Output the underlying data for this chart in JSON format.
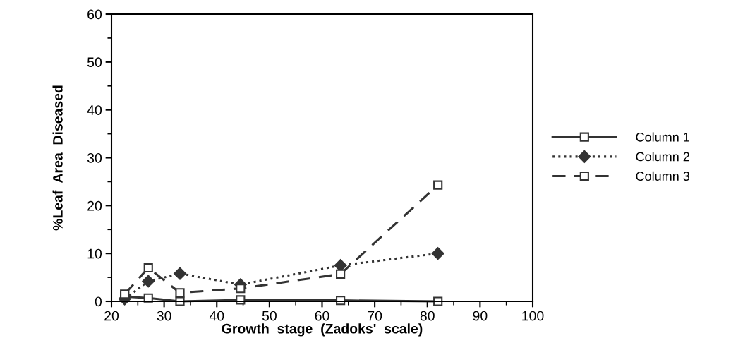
{
  "chart_data": {
    "type": "line",
    "xlabel": "Growth  stage  (Zadoks'  scale)",
    "ylabel": "%Leaf  Area  Diseased",
    "x": [
      22.5,
      27,
      33,
      44.5,
      63.5,
      82
    ],
    "series": [
      {
        "name": "Column 1",
        "color": "#333333",
        "values": [
          1.0,
          0.7,
          0,
          0.3,
          0.2,
          0
        ],
        "marker": "square",
        "line_style": "solid"
      },
      {
        "name": "Column 2",
        "color": "#333333",
        "values": [
          0.5,
          4.2,
          5.8,
          3.5,
          7.5,
          10
        ],
        "marker": "diamond",
        "line_style": "dotted"
      },
      {
        "name": "Column 3",
        "color": "#333333",
        "values": [
          1.5,
          7,
          1.8,
          2.7,
          5.7,
          24.3
        ],
        "marker": "square",
        "line_style": "dashed"
      }
    ],
    "xlim": [
      20,
      100
    ],
    "ylim": [
      0,
      60
    ],
    "xticks": [
      20,
      30,
      40,
      50,
      60,
      70,
      80,
      90,
      100
    ],
    "yticks": [
      0,
      10,
      20,
      30,
      40,
      50,
      60
    ],
    "grid": false,
    "legend": "right"
  }
}
